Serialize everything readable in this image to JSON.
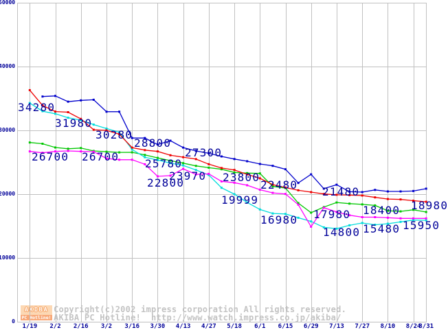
{
  "page": {
    "background": "#ffffff"
  },
  "footer": {
    "logo_line1": "AKIBA",
    "logo_line2": "PC Hotline!",
    "copyright_line1": "Copyright(c)2002 impress corporation All rights reserved.",
    "copyright_line2": "AKIBA PC Hotline!  http://www.watch.impress.co.jp/akiba/"
  },
  "colors": {
    "grid": "#c0c0c0",
    "axis_text": "#000099",
    "annotation_text": "#000099",
    "copyright_text": "#c3c3c3",
    "logo_bg_top": "#fcd8b4",
    "logo_bg_bottom": "#f8a878",
    "logo_accent": "#f59a56"
  },
  "chart_data": {
    "type": "line",
    "title": "",
    "xlabel": "",
    "ylabel": "",
    "ylim": [
      0,
      50000
    ],
    "grid": true,
    "legend_position": "none",
    "yticks": [
      0,
      10000,
      20000,
      30000,
      40000,
      50000
    ],
    "x": [
      "1/19",
      "1/26",
      "2/2",
      "2/9",
      "2/16",
      "2/23",
      "3/2",
      "3/9",
      "3/16",
      "3/23",
      "3/30",
      "4/6",
      "4/13",
      "4/20",
      "4/27",
      "5/11",
      "5/18",
      "5/25",
      "6/1",
      "6/8",
      "6/15",
      "6/22",
      "6/29",
      "7/6",
      "7/13",
      "7/20",
      "7/27",
      "8/3",
      "8/10",
      "8/17",
      "8/24",
      "8/31"
    ],
    "xticks": [
      {
        "label": "1/19",
        "slot": 0
      },
      {
        "label": "2/2",
        "slot": 2
      },
      {
        "label": "2/16",
        "slot": 4
      },
      {
        "label": "3/2",
        "slot": 6
      },
      {
        "label": "3/16",
        "slot": 8
      },
      {
        "label": "3/30",
        "slot": 10
      },
      {
        "label": "4/13",
        "slot": 12
      },
      {
        "label": "4/27",
        "slot": 14
      },
      {
        "label": "5/18",
        "slot": 16
      },
      {
        "label": "6/1",
        "slot": 18
      },
      {
        "label": "6/15",
        "slot": 20
      },
      {
        "label": "6/29",
        "slot": 22
      },
      {
        "label": "7/13",
        "slot": 24
      },
      {
        "label": "7/27",
        "slot": 26
      },
      {
        "label": "8/10",
        "slot": 28
      },
      {
        "label": "8/24",
        "slot": 30
      },
      {
        "label": "8/31",
        "slot": 31
      }
    ],
    "series": [
      {
        "name": "green",
        "color": "#00c800",
        "values": [
          28100,
          27900,
          27310,
          27120,
          27230,
          26770,
          26650,
          26550,
          26560,
          26150,
          25690,
          25260,
          24860,
          24430,
          24150,
          23900,
          23400,
          23300,
          23250,
          21210,
          20960,
          18600,
          17100,
          17980,
          18700,
          18520,
          18400,
          18240,
          17400,
          17300,
          17550,
          17200
        ]
      },
      {
        "name": "cyan",
        "color": "#00dcdc",
        "values": [
          34280,
          33000,
          32600,
          31980,
          31600,
          30900,
          30280,
          29700,
          27000,
          25780,
          25340,
          24870,
          24510,
          23800,
          23000,
          21000,
          19999,
          18700,
          17600,
          16980,
          16900,
          16300,
          15730,
          14800,
          14590,
          15120,
          15480,
          15200,
          15370,
          15660,
          15950,
          15900
        ]
      },
      {
        "name": "magenta",
        "color": "#ff00ff",
        "values": [
          26700,
          26480,
          26700,
          26770,
          26700,
          26660,
          25590,
          25400,
          25400,
          24690,
          22800,
          22900,
          23970,
          23100,
          23180,
          22000,
          21800,
          21400,
          20700,
          20200,
          20030,
          18350,
          14900,
          17880,
          17200,
          16700,
          16400,
          16400,
          16300,
          16200,
          16200,
          16200
        ]
      },
      {
        "name": "red",
        "color": "#ee0000",
        "values": [
          36300,
          33900,
          32950,
          32850,
          31800,
          30100,
          30000,
          29400,
          27300,
          26900,
          26700,
          26100,
          25800,
          25500,
          24700,
          24100,
          23800,
          23100,
          22480,
          21500,
          21030,
          20600,
          20320,
          20030,
          19900,
          19850,
          19780,
          19490,
          19240,
          19170,
          18980,
          18810
        ]
      },
      {
        "name": "blue",
        "color": "#0000cc",
        "values": [
          null,
          35300,
          35400,
          34500,
          34700,
          34800,
          32930,
          32930,
          28800,
          28800,
          27770,
          28380,
          27300,
          26770,
          26410,
          25910,
          25510,
          25160,
          24730,
          24440,
          23900,
          21750,
          23110,
          20860,
          21480,
          20390,
          20320,
          20670,
          20430,
          20430,
          20500,
          20860
        ]
      }
    ],
    "annotations": [
      {
        "text": "34280",
        "x": 26,
        "y": 150
      },
      {
        "text": "31980",
        "x": 80,
        "y": 173
      },
      {
        "text": "30280",
        "x": 139,
        "y": 190
      },
      {
        "text": "28800",
        "x": 195,
        "y": 202
      },
      {
        "text": "27300",
        "x": 269,
        "y": 216
      },
      {
        "text": "26700",
        "x": 46,
        "y": 222
      },
      {
        "text": "26700",
        "x": 119,
        "y": 222
      },
      {
        "text": "25780",
        "x": 211,
        "y": 232
      },
      {
        "text": "22800",
        "x": 214,
        "y": 260
      },
      {
        "text": "23970",
        "x": 246,
        "y": 250
      },
      {
        "text": "23800",
        "x": 324,
        "y": 252
      },
      {
        "text": "22480",
        "x": 379,
        "y": 263
      },
      {
        "text": "21480",
        "x": 469,
        "y": 273
      },
      {
        "text": "19999",
        "x": 322,
        "y": 285
      },
      {
        "text": "16980",
        "x": 379,
        "y": 314
      },
      {
        "text": "17980",
        "x": 456,
        "y": 306
      },
      {
        "text": "14800",
        "x": 470,
        "y": 332
      },
      {
        "text": "18400",
        "x": 528,
        "y": 300
      },
      {
        "text": "15480",
        "x": 528,
        "y": 327
      },
      {
        "text": "15950",
        "x": 586,
        "y": 322
      },
      {
        "text": "18980",
        "x": 598,
        "y": 293
      }
    ]
  }
}
